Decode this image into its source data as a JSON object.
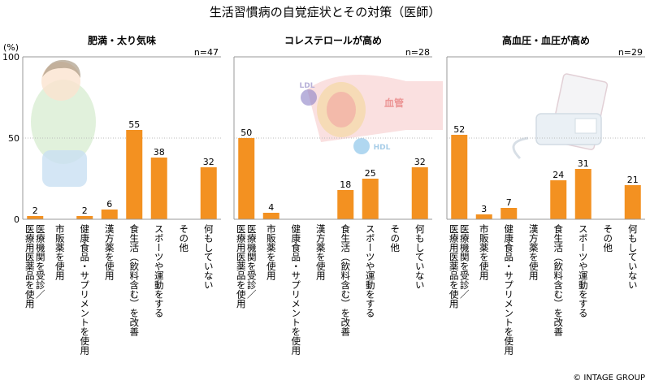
{
  "title": "生活習慣病の自覚症状とその対策（医師）",
  "y_unit": "(%)",
  "copyright": "© INTAGE GROUP",
  "categories": [
    "医療機関を受診／医療用医薬品を使用",
    "市販薬を使用",
    "健康食品・サプリメントを使用",
    "漢方薬を使用",
    "食生活（飲料含む）を改善",
    "スポーツや運動をする",
    "その他",
    "何もしていない"
  ],
  "colors": {
    "bar": "#f39121",
    "axis": "#999999",
    "grid": "#bbbbbb"
  },
  "chart_data": [
    {
      "type": "bar",
      "title": "肥満・太り気味",
      "n_label": "n=47",
      "ylim": [
        0,
        100
      ],
      "yticks": [
        0,
        50,
        100
      ],
      "values": [
        2,
        null,
        2,
        6,
        55,
        38,
        null,
        32
      ]
    },
    {
      "type": "bar",
      "title": "コレステロールが高め",
      "n_label": "n=28",
      "ylim": [
        0,
        100
      ],
      "yticks": [
        0,
        50,
        100
      ],
      "values": [
        50,
        4,
        null,
        null,
        18,
        25,
        null,
        32
      ],
      "illustration_labels": [
        "LDL",
        "血管",
        "HDL"
      ]
    },
    {
      "type": "bar",
      "title": "高血圧・血圧が高め",
      "n_label": "n=29",
      "ylim": [
        0,
        100
      ],
      "yticks": [
        0,
        50,
        100
      ],
      "values": [
        52,
        3,
        7,
        null,
        24,
        31,
        null,
        21
      ]
    }
  ]
}
